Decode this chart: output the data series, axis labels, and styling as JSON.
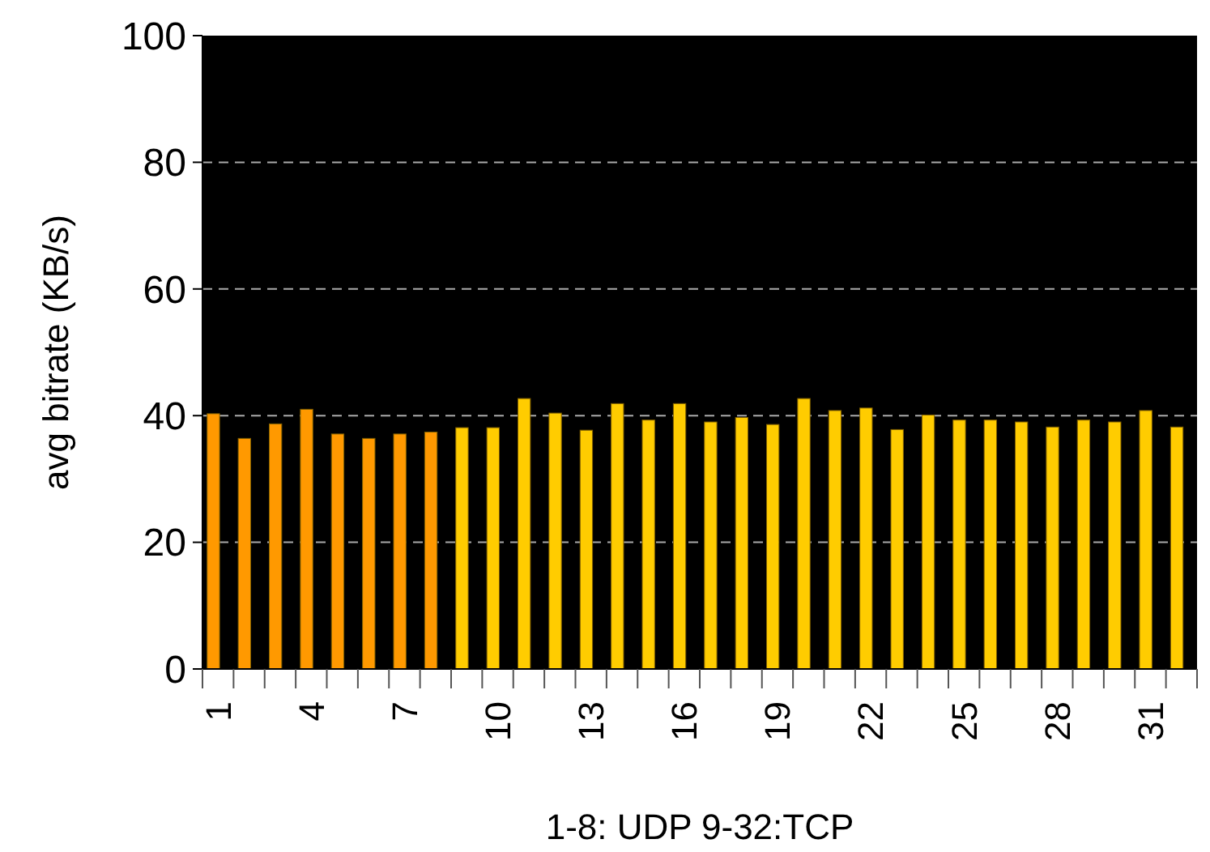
{
  "chart_data": {
    "type": "bar",
    "xlabel": "1-8: UDP 9-32:TCP",
    "ylabel": "avg bitrate (KB/s)",
    "categories": [
      "1",
      null,
      null,
      "4",
      null,
      null,
      "7",
      null,
      null,
      "10",
      null,
      null,
      "13",
      null,
      null,
      "16",
      null,
      null,
      "19",
      null,
      null,
      "22",
      null,
      null,
      "25",
      null,
      null,
      "28",
      null,
      null,
      "31",
      null
    ],
    "values": [
      40.3,
      36.4,
      38.7,
      41,
      37.1,
      36.4,
      37.1,
      37.4,
      38.1,
      38.1,
      42.7,
      40.4,
      37.7,
      41.9,
      39.3,
      41.9,
      39,
      39.7,
      38.6,
      42.7,
      40.8,
      41.2,
      37.8,
      40.1,
      39.3,
      39.3,
      39,
      38.2,
      39.3,
      39,
      40.8,
      38.2
    ],
    "colors": [
      "#ff9900",
      "#ff9900",
      "#ff9900",
      "#ff9900",
      "#ff9900",
      "#ff9900",
      "#ff9900",
      "#ff9900",
      "#ffcc00",
      "#ffcc00",
      "#ffcc00",
      "#ffcc00",
      "#ffcc00",
      "#ffcc00",
      "#ffcc00",
      "#ffcc00",
      "#ffcc00",
      "#ffcc00",
      "#ffcc00",
      "#ffcc00",
      "#ffcc00",
      "#ffcc00",
      "#ffcc00",
      "#ffcc00",
      "#ffcc00",
      "#ffcc00",
      "#ffcc00",
      "#ffcc00",
      "#ffcc00",
      "#ffcc00",
      "#ffcc00",
      "#ffcc00"
    ],
    "ylim": [
      0,
      100
    ],
    "yticks": [
      0,
      20,
      40,
      60,
      80,
      100
    ],
    "grid": "y"
  }
}
